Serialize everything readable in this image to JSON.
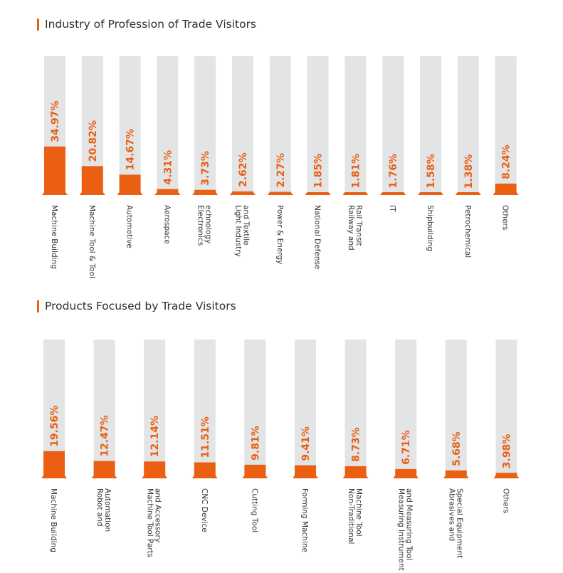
{
  "chart_data": [
    {
      "type": "bar",
      "title": "Industry of Profession of Trade Visitors",
      "categories": [
        "Machine Building",
        "Machine Tool & Tool",
        "Automotive",
        "Aerospace",
        [
          "Electronics",
          "echnology"
        ],
        [
          "Light Industry",
          "and Textile"
        ],
        "Power & Energy",
        "National Defense",
        [
          "Railway and",
          "Rail Transit"
        ],
        "IT",
        "Shipbuilding",
        "Petrochemical",
        "Others"
      ],
      "values": [
        34.97,
        20.82,
        14.67,
        4.31,
        3.73,
        2.62,
        2.27,
        1.85,
        1.81,
        1.76,
        1.58,
        1.38,
        8.24
      ],
      "value_labels": [
        "34.97%",
        "20.82%",
        "14.67%",
        "4.31%",
        "3.73%",
        "2.62%",
        "2.27%",
        "1.85%",
        "1.81%",
        "1.76%",
        "1.58%",
        "1.38%",
        "8.24%"
      ],
      "ylim": [
        0,
        100
      ],
      "colors": {
        "bar": "#eb5f12",
        "track": "#e3e4e6",
        "label": "#ffffff"
      }
    },
    {
      "type": "bar",
      "title": "Products Focused by Trade Visitors",
      "categories": [
        "Machine Building",
        [
          "Robot and",
          "Automation"
        ],
        [
          "Machine Tool Parts",
          "and Accessory"
        ],
        "CNC Device",
        "Cutting Tool",
        "Forming Machine",
        [
          "Non-Traditional",
          "Machine Tool"
        ],
        [
          "Measuring Instrument",
          "and Measuring Tool"
        ],
        [
          "Abrasives and",
          "Special Equipment"
        ],
        "Others"
      ],
      "values": [
        19.56,
        12.47,
        12.14,
        11.51,
        9.81,
        9.41,
        8.73,
        6.71,
        5.68,
        3.98
      ],
      "value_labels": [
        "19.56%",
        "12.47%",
        "12.14%",
        "11.51%",
        "9.81%",
        "9.41%",
        "8.73%",
        "6.71%",
        "5.68%",
        "3.98%"
      ],
      "ylim": [
        0,
        100
      ],
      "colors": {
        "bar": "#eb5f12",
        "track": "#e3e4e6",
        "label": "#ffffff"
      }
    }
  ]
}
